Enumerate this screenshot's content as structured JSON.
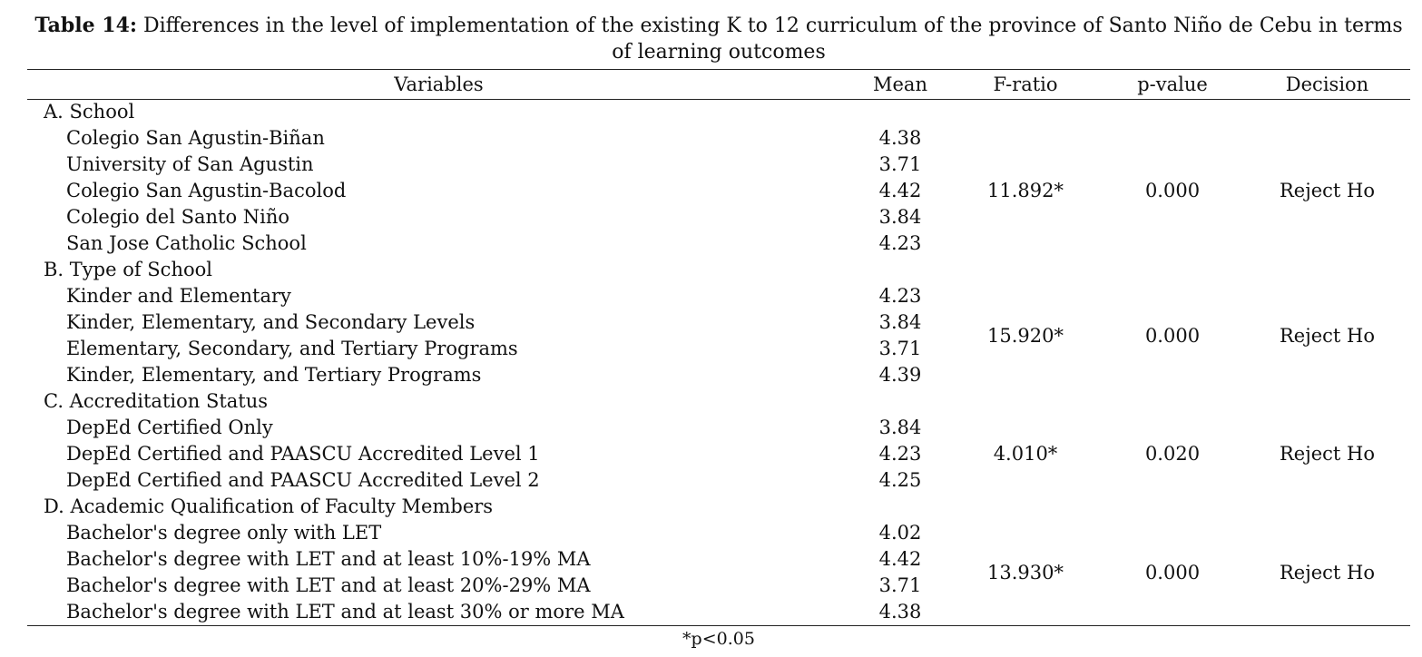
{
  "caption": {
    "label": "Table 14:",
    "text": "Differences in the level of implementation of the existing K to 12 curriculum of the province of Santo Niño de Cebu in terms of learning outcomes"
  },
  "table": {
    "headers": [
      "Variables",
      "Mean",
      "F-ratio",
      "p-value",
      "Decision"
    ],
    "groups": [
      {
        "label": "A. School",
        "f_ratio": "11.892*",
        "p_value": "0.000",
        "decision": "Reject Ho",
        "items": [
          {
            "name": "Colegio San Agustin-Biñan",
            "mean": "4.38"
          },
          {
            "name": "University of San Agustin",
            "mean": "3.71"
          },
          {
            "name": "Colegio San Agustin-Bacolod",
            "mean": "4.42"
          },
          {
            "name": "Colegio del Santo Niño",
            "mean": "3.84"
          },
          {
            "name": "San Jose Catholic School",
            "mean": "4.23"
          }
        ]
      },
      {
        "label": "B. Type of School",
        "f_ratio": "15.920*",
        "p_value": "0.000",
        "decision": "Reject Ho",
        "items": [
          {
            "name": "Kinder and Elementary",
            "mean": "4.23"
          },
          {
            "name": "Kinder, Elementary, and Secondary Levels",
            "mean": "3.84"
          },
          {
            "name": "Elementary, Secondary, and Tertiary Programs",
            "mean": "3.71"
          },
          {
            "name": "Kinder, Elementary, and Tertiary Programs",
            "mean": "4.39"
          }
        ]
      },
      {
        "label": "C. Accreditation Status",
        "f_ratio": "4.010*",
        "p_value": "0.020",
        "decision": "Reject Ho",
        "items": [
          {
            "name": "DepEd Certified Only",
            "mean": "3.84"
          },
          {
            "name": "DepEd Certified and PAASCU Accredited Level 1",
            "mean": "4.23"
          },
          {
            "name": "DepEd Certified and PAASCU Accredited Level 2",
            "mean": "4.25"
          }
        ]
      },
      {
        "label": "D. Academic Qualification of Faculty Members",
        "f_ratio": "13.930*",
        "p_value": "0.000",
        "decision": "Reject Ho",
        "items": [
          {
            "name": "Bachelor's degree only with LET",
            "mean": "4.02"
          },
          {
            "name": "Bachelor's degree with LET and at least 10%-19% MA",
            "mean": "4.42"
          },
          {
            "name": "Bachelor's degree with LET and at least 20%-29% MA",
            "mean": "3.71"
          },
          {
            "name": "Bachelor's degree with LET and at least 30% or more MA",
            "mean": "4.38"
          }
        ]
      }
    ]
  },
  "footnote": "*p<0.05"
}
